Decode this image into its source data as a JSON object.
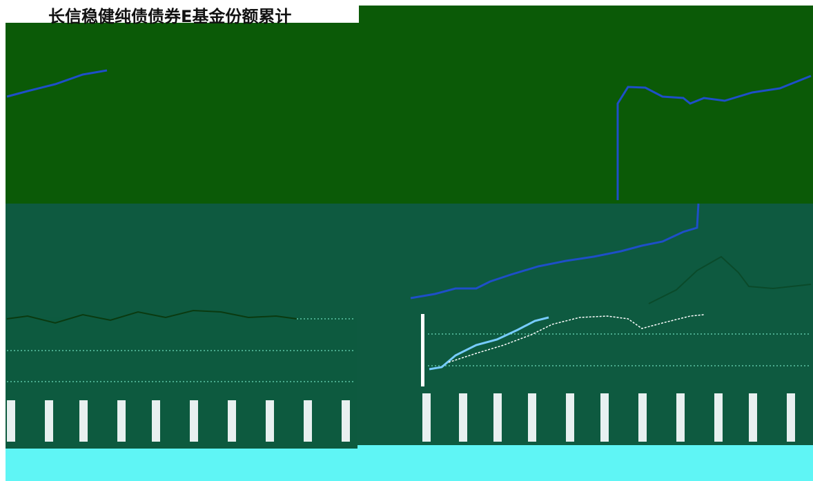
{
  "header": {
    "title": "长信稳健纯债债券E基金份额累计"
  }
}
